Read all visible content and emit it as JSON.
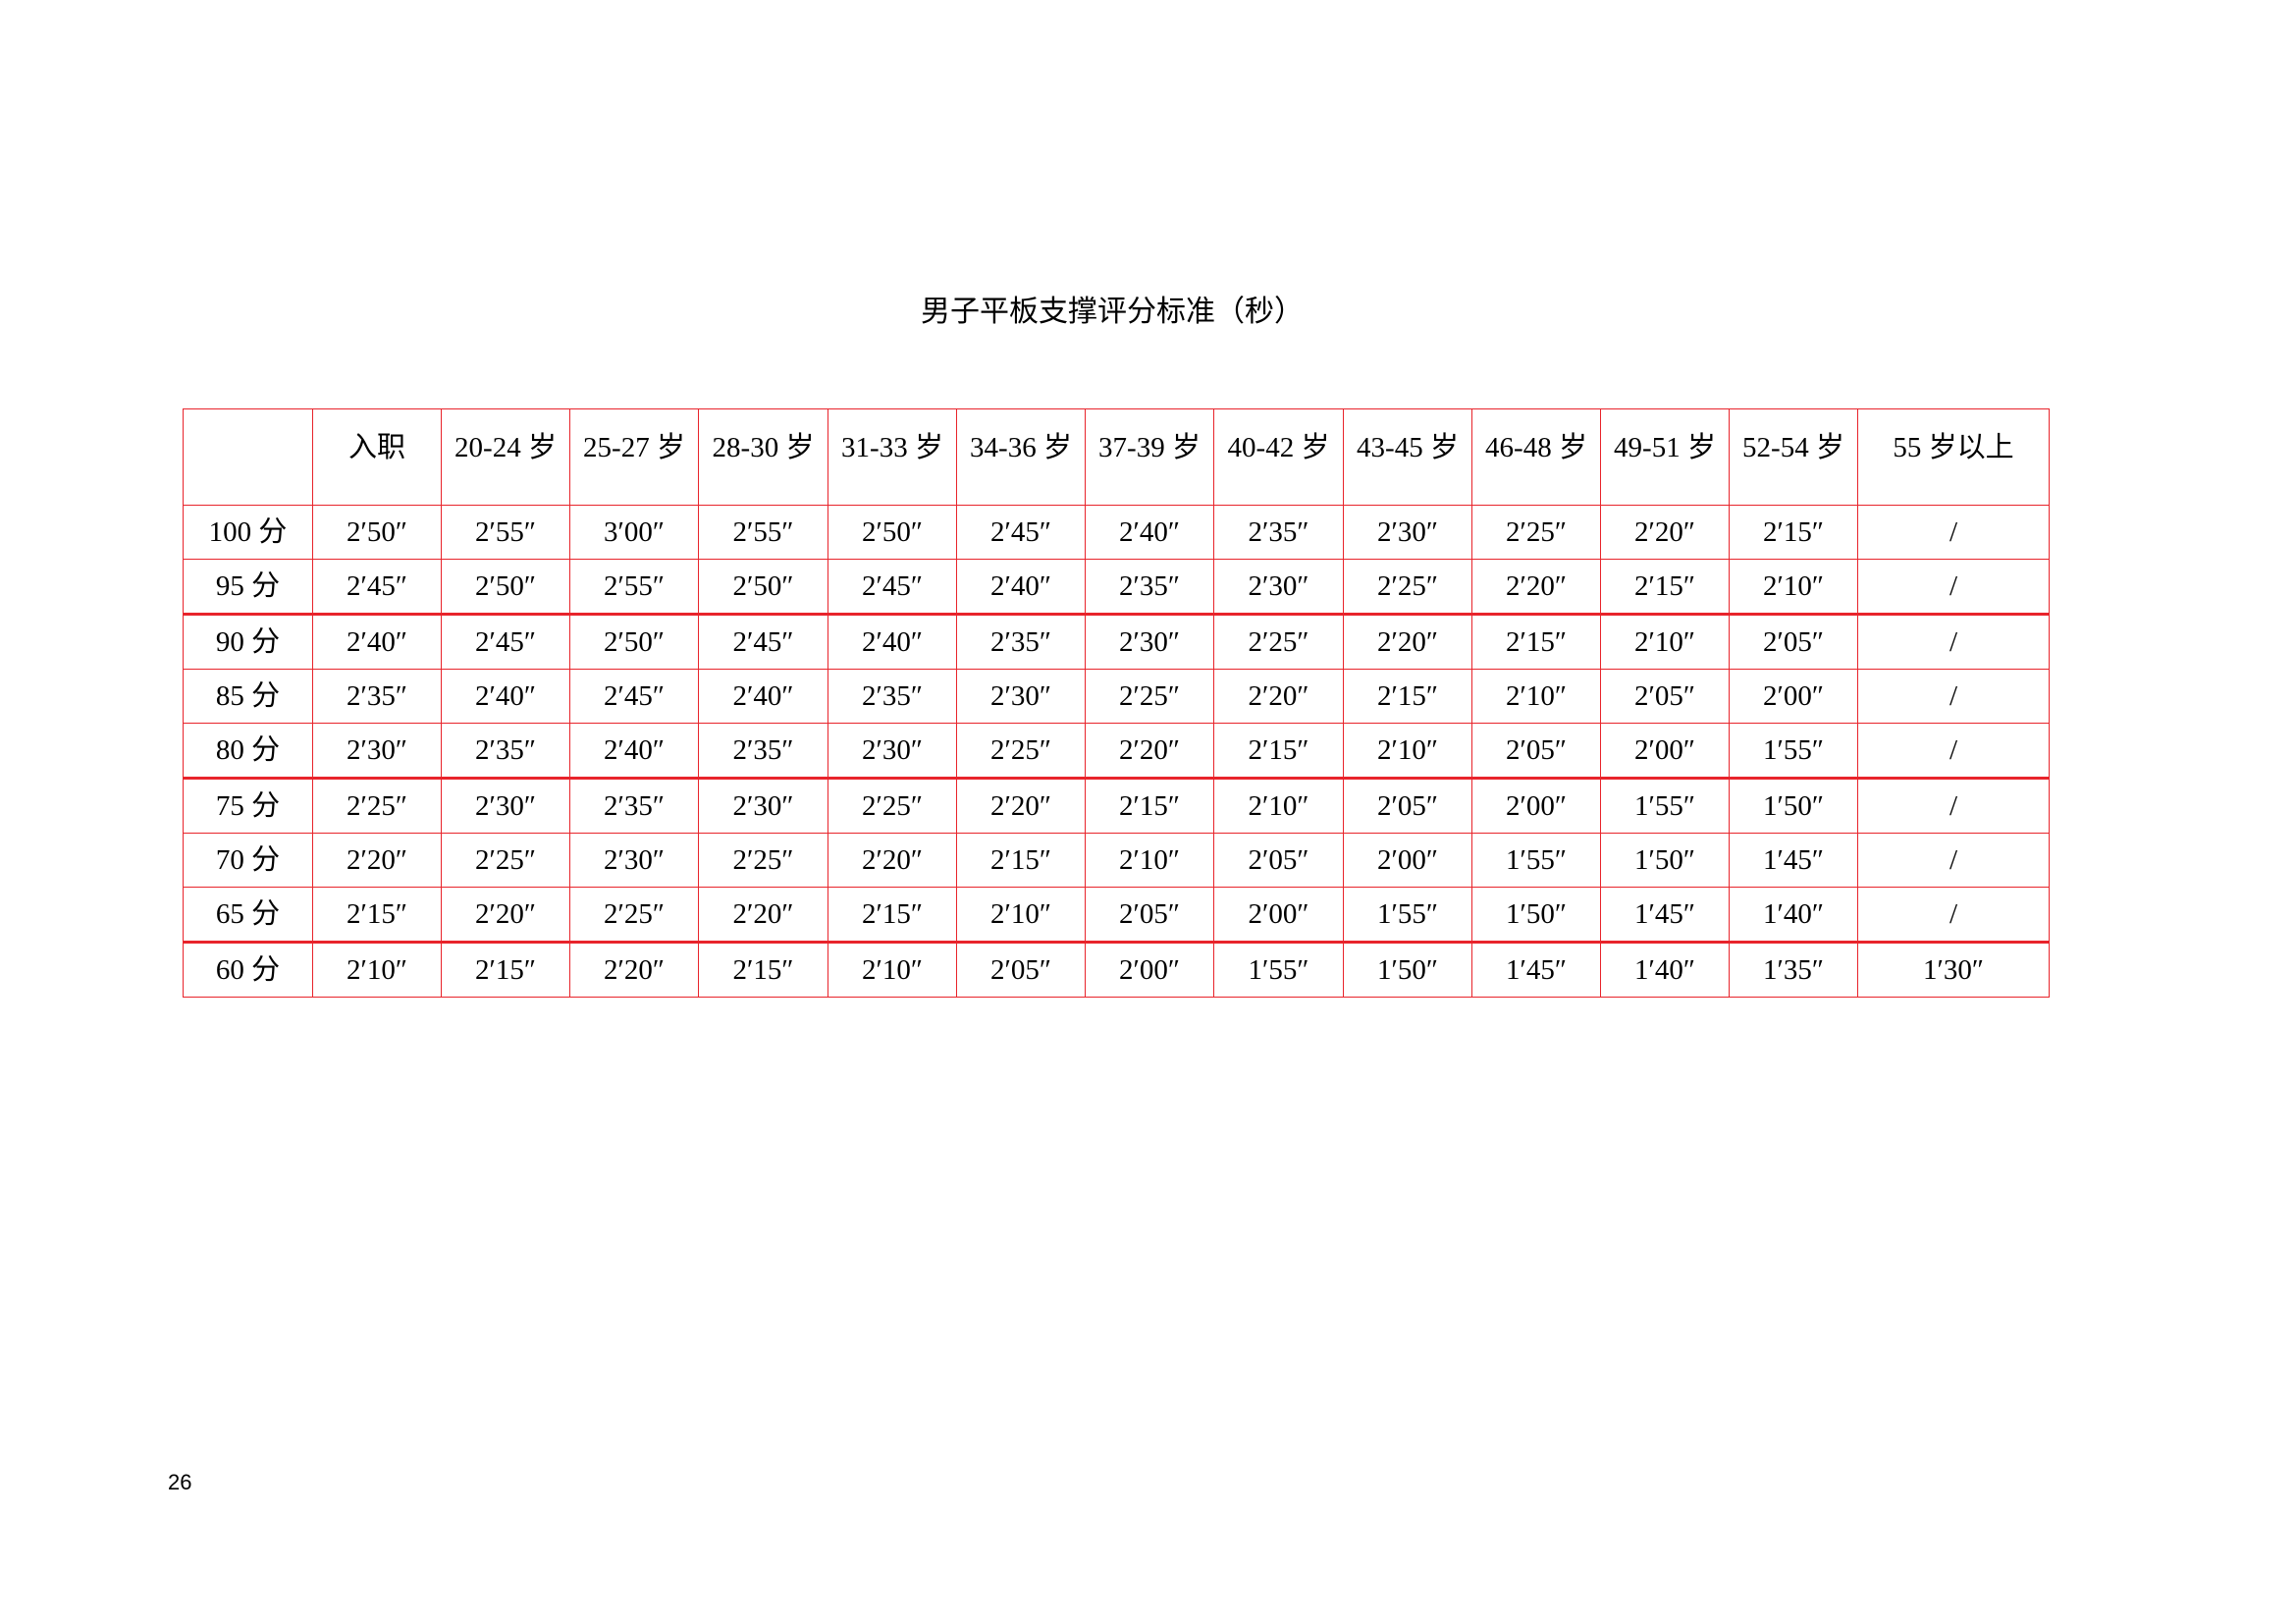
{
  "title": "男子平板支撑评分标准（秒）",
  "table": {
    "headers": [
      "",
      "入职",
      "20-24 岁",
      "25-27 岁",
      "28-30 岁",
      "31-33 岁",
      "34-36 岁",
      "37-39 岁",
      "40-42 岁",
      "43-45 岁",
      "46-48 岁",
      "49-51 岁",
      "52-54 岁",
      "55 岁以上"
    ],
    "rows": [
      [
        "100 分",
        "2′50″",
        "2′55″",
        "3′00″",
        "2′55″",
        "2′50″",
        "2′45″",
        "2′40″",
        "2′35″",
        "2′30″",
        "2′25″",
        "2′20″",
        "2′15″",
        "/"
      ],
      [
        "95 分",
        "2′45″",
        "2′50″",
        "2′55″",
        "2′50″",
        "2′45″",
        "2′40″",
        "2′35″",
        "2′30″",
        "2′25″",
        "2′20″",
        "2′15″",
        "2′10″",
        "/"
      ],
      [
        "90 分",
        "2′40″",
        "2′45″",
        "2′50″",
        "2′45″",
        "2′40″",
        "2′35″",
        "2′30″",
        "2′25″",
        "2′20″",
        "2′15″",
        "2′10″",
        "2′05″",
        "/"
      ],
      [
        "85 分",
        "2′35″",
        "2′40″",
        "2′45″",
        "2′40″",
        "2′35″",
        "2′30″",
        "2′25″",
        "2′20″",
        "2′15″",
        "2′10″",
        "2′05″",
        "2′00″",
        "/"
      ],
      [
        "80 分",
        "2′30″",
        "2′35″",
        "2′40″",
        "2′35″",
        "2′30″",
        "2′25″",
        "2′20″",
        "2′15″",
        "2′10″",
        "2′05″",
        "2′00″",
        "1′55″",
        "/"
      ],
      [
        "75 分",
        "2′25″",
        "2′30″",
        "2′35″",
        "2′30″",
        "2′25″",
        "2′20″",
        "2′15″",
        "2′10″",
        "2′05″",
        "2′00″",
        "1′55″",
        "1′50″",
        "/"
      ],
      [
        "70 分",
        "2′20″",
        "2′25″",
        "2′30″",
        "2′25″",
        "2′20″",
        "2′15″",
        "2′10″",
        "2′05″",
        "2′00″",
        "1′55″",
        "1′50″",
        "1′45″",
        "/"
      ],
      [
        "65 分",
        "2′15″",
        "2′20″",
        "2′25″",
        "2′20″",
        "2′15″",
        "2′10″",
        "2′05″",
        "2′00″",
        "1′55″",
        "1′50″",
        "1′45″",
        "1′40″",
        "/"
      ],
      [
        "60 分",
        "2′10″",
        "2′15″",
        "2′20″",
        "2′15″",
        "2′10″",
        "2′05″",
        "2′00″",
        "1′55″",
        "1′50″",
        "1′45″",
        "1′40″",
        "1′35″",
        "1′30″"
      ]
    ]
  },
  "page_number": "26",
  "colors": {
    "border": "#e8242b"
  }
}
